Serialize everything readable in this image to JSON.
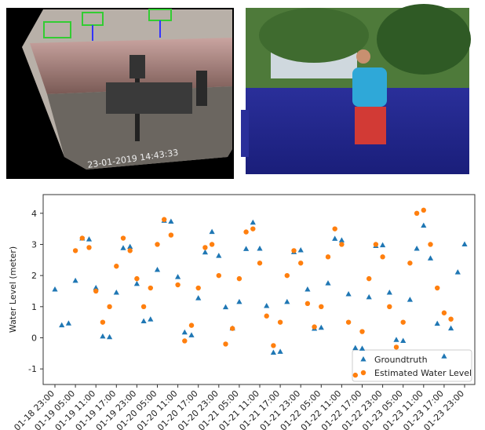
{
  "images": {
    "left_timestamp": "23-01-2019 14:43:33"
  },
  "chart_data": {
    "type": "scatter",
    "y_label": "Water Level (meter)",
    "x": [
      "01-18 23:00",
      "01-19 01:00",
      "01-19 03:00",
      "01-19 05:00",
      "01-19 07:00",
      "01-19 09:00",
      "01-19 11:00",
      "01-19 13:00",
      "01-19 15:00",
      "01-19 17:00",
      "01-19 19:00",
      "01-19 21:00",
      "01-19 23:00",
      "01-20 01:00",
      "01-20 03:00",
      "01-20 05:00",
      "01-20 07:00",
      "01-20 09:00",
      "01-20 11:00",
      "01-20 13:00",
      "01-20 15:00",
      "01-20 17:00",
      "01-20 19:00",
      "01-20 21:00",
      "01-20 23:00",
      "01-21 01:00",
      "01-21 03:00",
      "01-21 05:00",
      "01-21 07:00",
      "01-21 09:00",
      "01-21 11:00",
      "01-21 13:00",
      "01-21 15:00",
      "01-21 17:00",
      "01-21 19:00",
      "01-21 21:00",
      "01-21 23:00",
      "01-22 01:00",
      "01-22 03:00",
      "01-22 05:00",
      "01-22 07:00",
      "01-22 09:00",
      "01-22 11:00",
      "01-22 13:00",
      "01-22 15:00",
      "01-22 17:00",
      "01-22 19:00",
      "01-22 21:00",
      "01-22 23:00",
      "01-23 01:00",
      "01-23 03:00",
      "01-23 05:00",
      "01-23 07:00",
      "01-23 09:00",
      "01-23 11:00",
      "01-23 13:00",
      "01-23 15:00",
      "01-23 17:00",
      "01-23 19:00",
      "01-23 21:00",
      "01-23 23:00"
    ],
    "series": [
      {
        "name": "Groundtruth",
        "color": "#1f77b4",
        "marker": "triangle",
        "values": [
          1.55,
          0.4,
          0.46,
          1.83,
          3.19,
          3.16,
          1.6,
          0.04,
          0.02,
          1.45,
          2.88,
          2.92,
          1.73,
          0.53,
          0.59,
          2.18,
          3.76,
          3.73,
          1.95,
          0.17,
          0.08,
          1.27,
          2.74,
          3.4,
          2.63,
          0.98,
          0.3,
          1.15,
          2.85,
          3.7,
          2.86,
          1.02,
          -0.48,
          -0.45,
          1.15,
          2.75,
          2.81,
          1.55,
          0.29,
          0.32,
          1.75,
          3.18,
          3.13,
          1.4,
          -0.33,
          -0.35,
          1.3,
          2.95,
          2.97,
          1.45,
          -0.07,
          -0.1,
          1.22,
          2.86,
          3.6,
          2.55,
          0.45,
          -0.6,
          0.3,
          2.1,
          3.0
        ]
      },
      {
        "name": "Estimated Water Level",
        "color": "#ff7f0e",
        "marker": "circle",
        "values": [
          null,
          null,
          null,
          2.8,
          3.2,
          2.9,
          1.5,
          0.5,
          1.0,
          2.3,
          3.2,
          2.8,
          1.9,
          1.0,
          1.6,
          3.0,
          3.8,
          3.3,
          1.7,
          -0.1,
          0.4,
          1.6,
          2.9,
          3.0,
          2.0,
          -0.2,
          0.3,
          1.9,
          3.4,
          3.5,
          2.4,
          0.7,
          -0.25,
          0.5,
          2.0,
          2.8,
          2.4,
          1.1,
          0.35,
          1.0,
          2.6,
          3.5,
          3.0,
          0.5,
          -1.2,
          0.2,
          1.9,
          3.0,
          2.6,
          1.0,
          -0.3,
          0.5,
          2.4,
          4.0,
          4.1,
          3.0,
          1.6,
          0.8,
          0.6,
          null,
          null
        ]
      }
    ],
    "xticks": [
      "01-18 23:00",
      "01-19 05:00",
      "01-19 11:00",
      "01-19 17:00",
      "01-19 23:00",
      "01-20 05:00",
      "01-20 11:00",
      "01-20 17:00",
      "01-20 23:00",
      "01-21 05:00",
      "01-21 11:00",
      "01-21 17:00",
      "01-21 23:00",
      "01-22 05:00",
      "01-22 11:00",
      "01-22 17:00",
      "01-22 23:00",
      "01-23 05:00",
      "01-23 11:00",
      "01-23 17:00",
      "01-23 23:00"
    ],
    "ylim": [
      -1.5,
      4.6
    ],
    "yticks": [
      -1,
      0,
      1,
      2,
      3,
      4
    ],
    "legend": "lower right"
  }
}
